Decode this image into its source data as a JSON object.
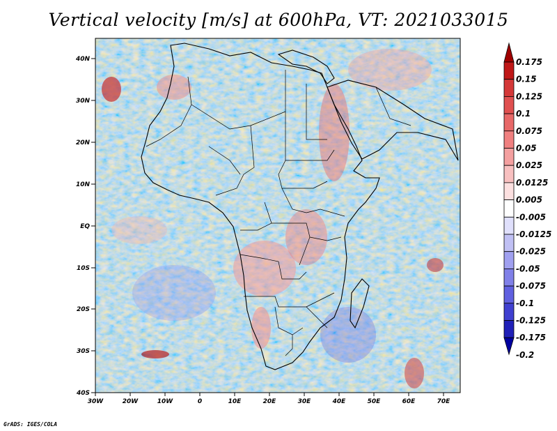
{
  "title": "Vertical velocity [m/s] at 600hPa, VT: 2021033015",
  "footer": "GrADS: IGES/COLA",
  "map": {
    "region": "Africa",
    "lat_ticks": [
      "40N",
      "30N",
      "20N",
      "10N",
      "EQ",
      "10S",
      "20S",
      "30S",
      "40S"
    ],
    "lon_ticks": [
      "30W",
      "20W",
      "10W",
      "0",
      "10E",
      "20E",
      "30E",
      "40E",
      "50E",
      "60E",
      "70E"
    ],
    "colors": {
      "updraft": "#c83030",
      "downdraft": "#4040d0",
      "neutral": "#ffffff",
      "coast": "#000000"
    }
  },
  "legend": {
    "labels": [
      "0.175",
      "0.15",
      "0.125",
      "0.1",
      "0.075",
      "0.05",
      "0.025",
      "0.0125",
      "0.005",
      "-0.005",
      "-0.0125",
      "-0.025",
      "-0.05",
      "-0.075",
      "-0.1",
      "-0.125",
      "-0.175",
      "-0.2"
    ],
    "colors": [
      "#a00000",
      "#c01818",
      "#d43838",
      "#e05050",
      "#e86868",
      "#f08080",
      "#f4a0a0",
      "#f8c0c0",
      "#fce0e0",
      "#ffffff",
      "#e0e0fc",
      "#c0c0f4",
      "#a0a0f0",
      "#8080e8",
      "#6060e0",
      "#4040d0",
      "#2020b8",
      "#0000a0"
    ]
  }
}
